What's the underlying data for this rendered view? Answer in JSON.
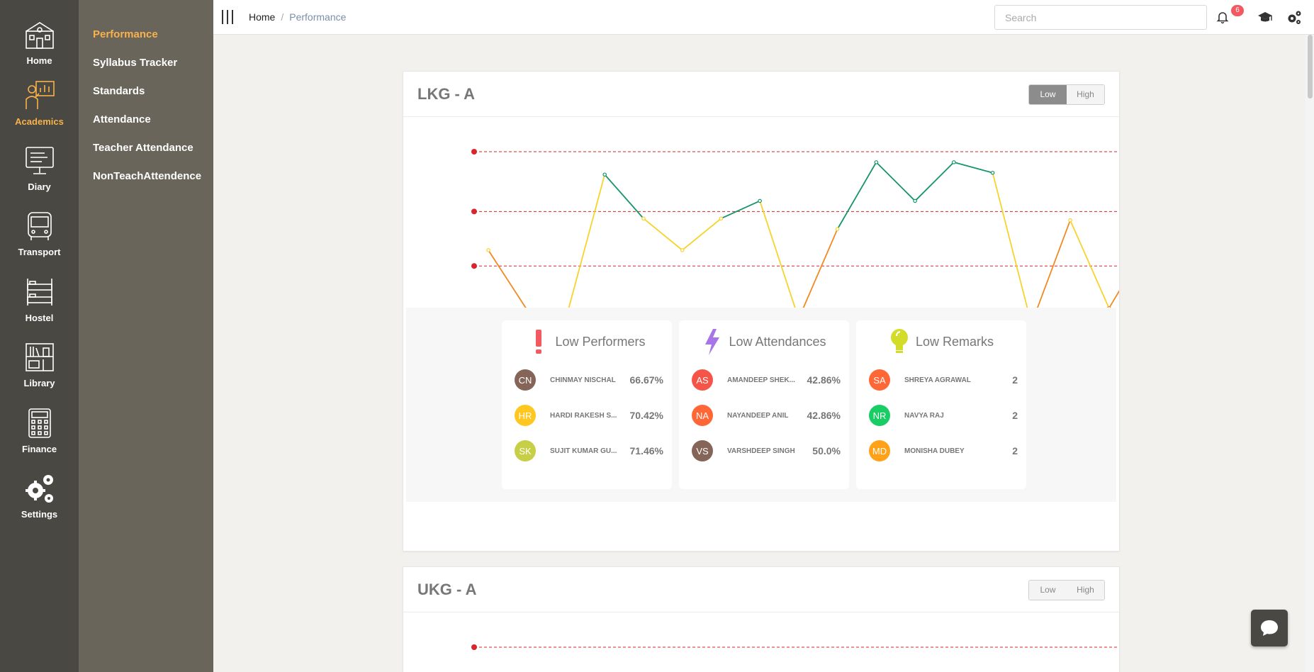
{
  "rail": {
    "items": [
      {
        "label": "Home",
        "icon": "school-building-icon"
      },
      {
        "label": "Academics",
        "icon": "teacher-board-icon",
        "active": true
      },
      {
        "label": "Diary",
        "icon": "monitor-diary-icon"
      },
      {
        "label": "Transport",
        "icon": "bus-icon"
      },
      {
        "label": "Hostel",
        "icon": "bunk-bed-icon"
      },
      {
        "label": "Library",
        "icon": "bookshelf-icon"
      },
      {
        "label": "Finance",
        "icon": "calculator-icon"
      },
      {
        "label": "Settings",
        "icon": "gears-icon"
      }
    ]
  },
  "submenu": {
    "items": [
      {
        "label": "Performance",
        "active": true
      },
      {
        "label": "Syllabus Tracker"
      },
      {
        "label": "Standards"
      },
      {
        "label": "Attendance"
      },
      {
        "label": "Teacher Attendance"
      },
      {
        "label": "NonTeachAttendence"
      }
    ]
  },
  "topbar": {
    "breadcrumb": {
      "home": "Home",
      "separator": "/",
      "current": "Performance"
    },
    "search_placeholder": "Search",
    "notification_count": "6",
    "icons": [
      "bell-icon",
      "graduation-cap-icon",
      "gears-icon"
    ]
  },
  "colors": {
    "accent": "#f7b24b",
    "high": "#16956a",
    "mid": "#f6d32d",
    "low": "#f08a24",
    "threshold": "#d9252b"
  },
  "cards": [
    {
      "title": "LKG - A",
      "toggle": {
        "low": "Low",
        "high": "High",
        "selected": "Low"
      },
      "chart_data": {
        "type": "line",
        "thresholds": [
          100,
          66,
          35
        ],
        "ylim": [
          0,
          100
        ],
        "values": [
          44,
          10,
          5,
          87,
          62,
          44,
          62,
          72,
          5,
          56,
          94,
          72,
          94,
          88,
          2,
          61,
          11,
          48,
          41,
          96
        ]
      },
      "panels": [
        {
          "title": "Low Performers",
          "icon": "exclamation-icon",
          "rows": [
            {
              "initials": "CN",
              "name": "CHINMAY NISCHAL",
              "value": "66.67%",
              "color": "#795548"
            },
            {
              "initials": "HR",
              "name": "HARDI RAKESH S...",
              "value": "70.42%",
              "color": "#ffc107"
            },
            {
              "initials": "SK",
              "name": "SUJIT KUMAR GU...",
              "value": "71.46%",
              "color": "#c0ca33"
            }
          ]
        },
        {
          "title": "Low Attendances",
          "icon": "lightning-icon",
          "rows": [
            {
              "initials": "AS",
              "name": "AMANDEEP SHEK...",
              "value": "42.86%",
              "color": "#f44336"
            },
            {
              "initials": "NA",
              "name": "NAYANDEEP ANIL",
              "value": "42.86%",
              "color": "#ff5722"
            },
            {
              "initials": "VS",
              "name": "VARSHDEEP SINGH",
              "value": "50.0%",
              "color": "#795548"
            }
          ]
        },
        {
          "title": "Low Remarks",
          "icon": "lightbulb-icon",
          "rows": [
            {
              "initials": "SA",
              "name": "SHREYA AGRAWAL",
              "value": "2",
              "color": "#ff5722"
            },
            {
              "initials": "NR",
              "name": "NAVYA RAJ",
              "value": "2",
              "color": "#00c853"
            },
            {
              "initials": "MD",
              "name": "MONISHA DUBEY",
              "value": "2",
              "color": "#ff9800"
            }
          ]
        }
      ]
    },
    {
      "title": "UKG - A",
      "toggle": {
        "low": "Low",
        "high": "High",
        "selected": "none"
      },
      "chart_data": {
        "type": "line",
        "thresholds": [
          100
        ],
        "ylim": [
          0,
          100
        ]
      }
    }
  ]
}
